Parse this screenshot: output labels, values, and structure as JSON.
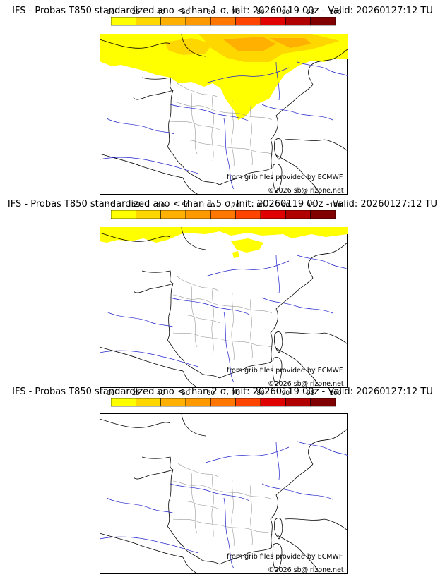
{
  "panels": [
    {
      "title": "IFS - Probas T850  standardized ano < than 1 σ, Init: 20260119 00z - Valid: 20260127:12 TU",
      "credit": "from grib files provided by ECMWF",
      "copyright": "©2026 sb@irizone.net"
    },
    {
      "title": "IFS - Probas T850  standardized ano < than 1.5 σ, Init: 20260119 00z - Valid: 20260127:12 TU",
      "credit": "from grib files provided by ECMWF",
      "copyright": "©2026 sb@irizone.net"
    },
    {
      "title": "IFS - Probas T850  standardized ano < than 2 σ, Init: 20260119 00z - Valid: 20260127:12 TU",
      "credit": "from grib files provided by ECMWF",
      "copyright": "©2026 sb@irizone.net"
    }
  ],
  "colorbar": {
    "ticks": [
      "10",
      "25",
      "40",
      "50",
      "60",
      "70",
      "80",
      "90",
      "95",
      "100"
    ],
    "colors": [
      "#ffff00",
      "#ffd700",
      "#ffb000",
      "#ff9900",
      "#ff7700",
      "#ff4400",
      "#e00000",
      "#b00000",
      "#800000"
    ]
  }
}
